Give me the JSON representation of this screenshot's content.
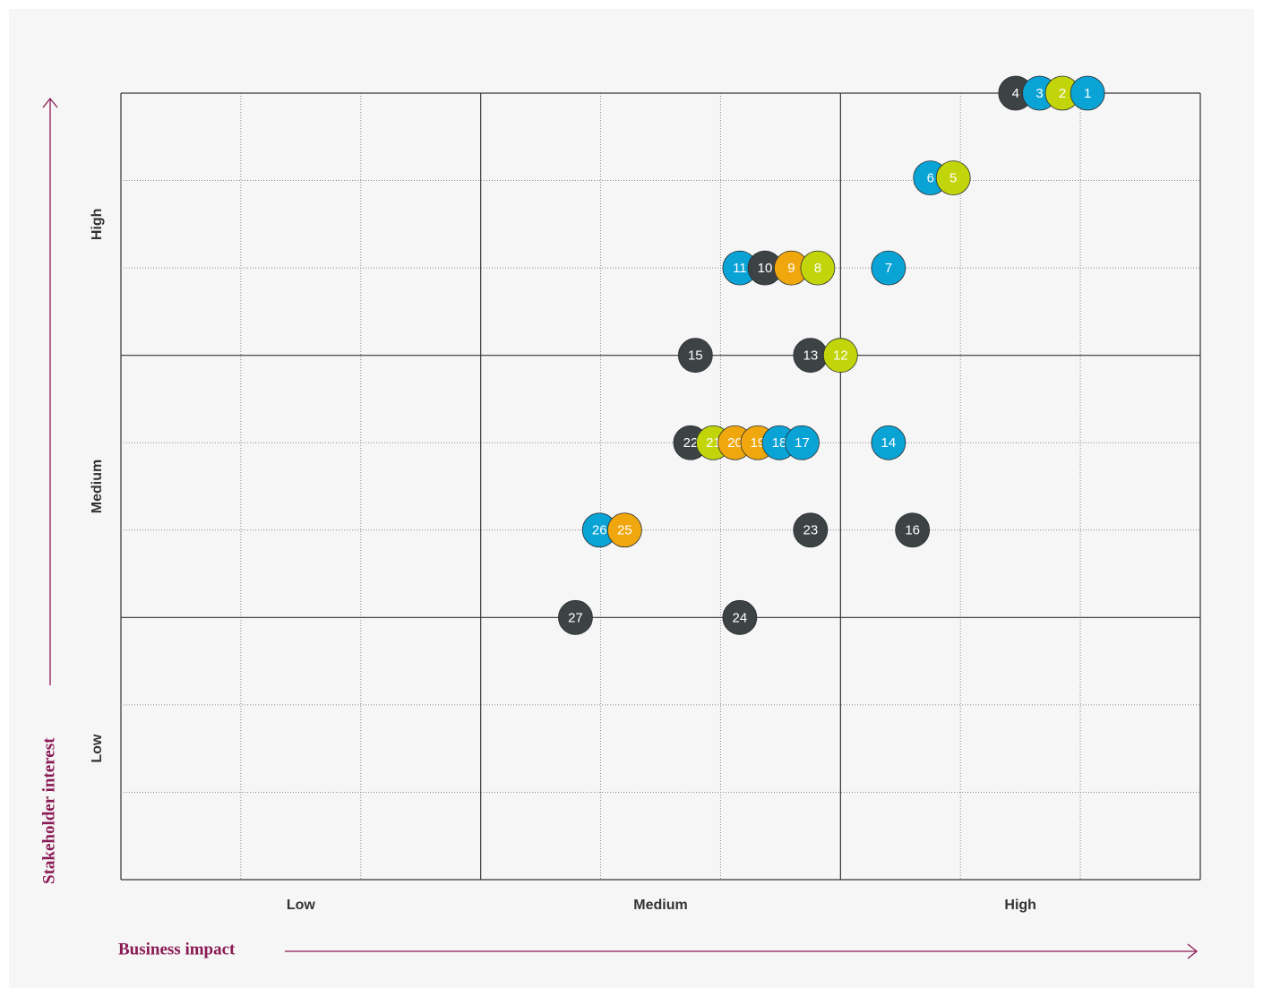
{
  "chart_data": {
    "type": "scatter",
    "xlabel": "Business impact",
    "ylabel": "Stakeholder interest",
    "xlim": [
      0,
      9
    ],
    "ylim": [
      0,
      9
    ],
    "xticks": [
      {
        "value": 1.5,
        "label": "Low"
      },
      {
        "value": 4.5,
        "label": "Medium"
      },
      {
        "value": 7.5,
        "label": "High"
      }
    ],
    "yticks": [
      {
        "value": 1.5,
        "label": "Low"
      },
      {
        "value": 4.5,
        "label": "Medium"
      },
      {
        "value": 7.5,
        "label": "High"
      }
    ],
    "grid": true,
    "points": [
      {
        "label": "1",
        "x": 8.06,
        "y": 9.0,
        "color": "#0aa3d6"
      },
      {
        "label": "2",
        "x": 7.85,
        "y": 9.0,
        "color": "#c2d50a"
      },
      {
        "label": "3",
        "x": 7.66,
        "y": 9.0,
        "color": "#0aa3d6"
      },
      {
        "label": "4",
        "x": 7.46,
        "y": 9.0,
        "color": "#3d4345"
      },
      {
        "label": "5",
        "x": 6.94,
        "y": 8.03,
        "color": "#c2d50a"
      },
      {
        "label": "6",
        "x": 6.75,
        "y": 8.03,
        "color": "#0aa3d6"
      },
      {
        "label": "7",
        "x": 6.4,
        "y": 7.0,
        "color": "#0aa3d6"
      },
      {
        "label": "8",
        "x": 5.81,
        "y": 7.0,
        "color": "#c2d50a"
      },
      {
        "label": "9",
        "x": 5.59,
        "y": 7.0,
        "color": "#f0a70e"
      },
      {
        "label": "10",
        "x": 5.37,
        "y": 7.0,
        "color": "#3d4345"
      },
      {
        "label": "11",
        "x": 5.16,
        "y": 7.0,
        "color": "#0aa3d6"
      },
      {
        "label": "12",
        "x": 6.0,
        "y": 6.0,
        "color": "#c2d50a"
      },
      {
        "label": "13",
        "x": 5.75,
        "y": 6.0,
        "color": "#3d4345"
      },
      {
        "label": "14",
        "x": 6.4,
        "y": 5.0,
        "color": "#0aa3d6"
      },
      {
        "label": "15",
        "x": 4.79,
        "y": 6.0,
        "color": "#3d4345"
      },
      {
        "label": "16",
        "x": 6.6,
        "y": 4.0,
        "color": "#3d4345"
      },
      {
        "label": "17",
        "x": 5.68,
        "y": 5.0,
        "color": "#0aa3d6"
      },
      {
        "label": "18",
        "x": 5.49,
        "y": 5.0,
        "color": "#0aa3d6"
      },
      {
        "label": "19",
        "x": 5.31,
        "y": 5.0,
        "color": "#f0a70e"
      },
      {
        "label": "20",
        "x": 5.12,
        "y": 5.0,
        "color": "#f0a70e"
      },
      {
        "label": "21",
        "x": 4.94,
        "y": 5.0,
        "color": "#c2d50a"
      },
      {
        "label": "22",
        "x": 4.75,
        "y": 5.0,
        "color": "#3d4345"
      },
      {
        "label": "23",
        "x": 5.75,
        "y": 4.0,
        "color": "#3d4345"
      },
      {
        "label": "24",
        "x": 5.16,
        "y": 3.0,
        "color": "#3d4345"
      },
      {
        "label": "25",
        "x": 4.2,
        "y": 4.0,
        "color": "#f0a70e"
      },
      {
        "label": "26",
        "x": 3.99,
        "y": 4.0,
        "color": "#0aa3d6"
      },
      {
        "label": "27",
        "x": 3.79,
        "y": 3.0,
        "color": "#3d4345"
      }
    ]
  }
}
